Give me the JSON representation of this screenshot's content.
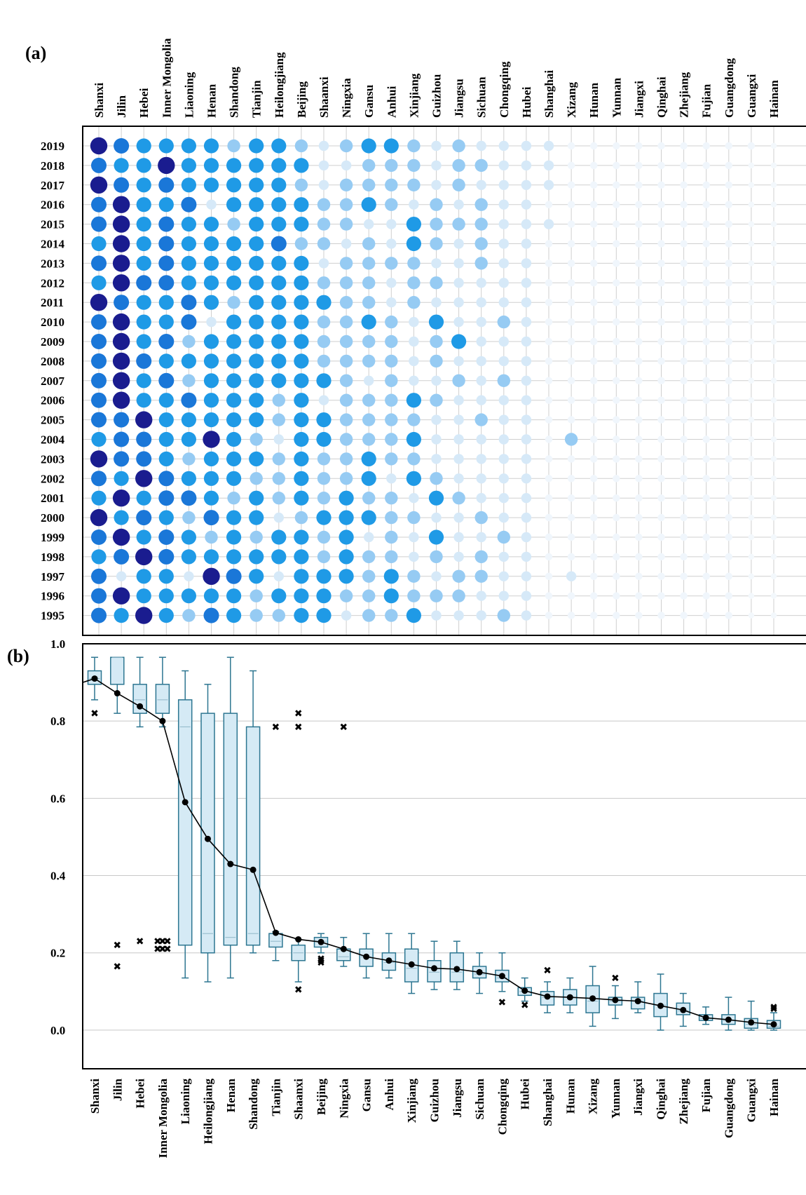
{
  "panel_labels": {
    "a": "(a)",
    "b": "(b)"
  },
  "colors": {
    "level_scale": [
      "#f0f6fc",
      "#d6e9f8",
      "#96cbf3",
      "#48b0f0",
      "#1f9ae6",
      "#1a77d8",
      "#3d52c6",
      "#1a1c8f"
    ],
    "box_fill": "#d5eaf5",
    "box_stroke": "#2d7691",
    "grid": "#c8c8c8",
    "median_line": "#000000"
  },
  "chart_data": [
    {
      "type": "heatmap",
      "panel": "(a)",
      "encoding": "circle size and color intensity, ordinal level 1 (lightest/smallest) to 8 (darkest/largest)",
      "provinces": [
        "Shanxi",
        "Jilin",
        "Hebei",
        "Inner Mongolia",
        "Liaoning",
        "Henan",
        "Shandong",
        "Tianjin",
        "Heilongjiang",
        "Beijing",
        "Shaanxi",
        "Ningxia",
        "Gansu",
        "Anhui",
        "Xinjiang",
        "Guizhou",
        "Jiangsu",
        "Sichuan",
        "Chongqing",
        "Hubei",
        "Shanghai",
        "Xizang",
        "Hunan",
        "Yunnan",
        "Jiangxi",
        "Qinghai",
        "Zhejiang",
        "Fujian",
        "Guangdong",
        "Guangxi",
        "Hainan"
      ],
      "years": [
        "2019",
        "2018",
        "2017",
        "2016",
        "2015",
        "2014",
        "2013",
        "2012",
        "2011",
        "2010",
        "2009",
        "2008",
        "2007",
        "2006",
        "2005",
        "2004",
        "2003",
        "2002",
        "2001",
        "2000",
        "1999",
        "1998",
        "1997",
        "1996",
        "1995"
      ],
      "levels": [
        [
          8,
          6,
          5,
          5,
          5,
          5,
          3,
          5,
          5,
          3,
          2,
          3,
          5,
          5,
          3,
          2,
          3,
          2,
          2,
          2,
          2,
          1,
          1,
          1,
          1,
          1,
          1,
          1,
          1,
          1,
          0
        ],
        [
          6,
          5,
          5,
          8,
          5,
          5,
          5,
          5,
          5,
          5,
          2,
          2,
          3,
          3,
          3,
          2,
          3,
          3,
          2,
          2,
          2,
          1,
          1,
          1,
          1,
          1,
          1,
          1,
          1,
          0,
          0
        ],
        [
          8,
          6,
          5,
          6,
          5,
          5,
          5,
          5,
          5,
          3,
          2,
          3,
          3,
          3,
          3,
          2,
          3,
          2,
          2,
          2,
          2,
          1,
          1,
          1,
          1,
          1,
          1,
          1,
          1,
          0,
          0
        ],
        [
          6,
          8,
          5,
          5,
          6,
          2,
          5,
          5,
          5,
          5,
          3,
          3,
          5,
          3,
          2,
          3,
          2,
          3,
          2,
          2,
          1,
          1,
          1,
          1,
          1,
          1,
          1,
          1,
          1,
          0,
          0
        ],
        [
          6,
          8,
          5,
          6,
          5,
          5,
          3,
          5,
          5,
          5,
          3,
          3,
          2,
          2,
          5,
          3,
          3,
          3,
          2,
          2,
          2,
          1,
          1,
          1,
          1,
          1,
          1,
          1,
          1,
          0,
          0
        ],
        [
          5,
          8,
          5,
          6,
          5,
          5,
          5,
          5,
          6,
          3,
          3,
          2,
          3,
          2,
          5,
          3,
          2,
          3,
          2,
          2,
          1,
          1,
          1,
          1,
          1,
          1,
          1,
          1,
          1,
          0,
          0
        ],
        [
          6,
          8,
          5,
          6,
          5,
          5,
          5,
          5,
          5,
          5,
          2,
          3,
          3,
          3,
          3,
          2,
          2,
          3,
          2,
          2,
          1,
          1,
          1,
          1,
          1,
          1,
          1,
          1,
          1,
          0,
          0
        ],
        [
          5,
          8,
          6,
          6,
          5,
          5,
          5,
          5,
          5,
          5,
          3,
          3,
          3,
          2,
          3,
          3,
          2,
          2,
          2,
          2,
          1,
          1,
          1,
          1,
          1,
          1,
          1,
          1,
          1,
          0,
          0
        ],
        [
          8,
          6,
          5,
          5,
          6,
          5,
          3,
          5,
          5,
          5,
          5,
          3,
          3,
          2,
          3,
          2,
          2,
          2,
          2,
          2,
          1,
          1,
          1,
          1,
          1,
          1,
          1,
          1,
          1,
          0,
          0
        ],
        [
          6,
          8,
          5,
          5,
          6,
          2,
          5,
          5,
          5,
          5,
          3,
          3,
          5,
          3,
          2,
          5,
          2,
          2,
          3,
          2,
          1,
          1,
          1,
          1,
          1,
          1,
          1,
          1,
          1,
          0,
          0
        ],
        [
          6,
          8,
          5,
          6,
          3,
          5,
          5,
          5,
          5,
          5,
          3,
          3,
          3,
          3,
          2,
          3,
          5,
          2,
          2,
          2,
          1,
          1,
          1,
          1,
          1,
          1,
          1,
          1,
          1,
          0,
          0
        ],
        [
          6,
          8,
          6,
          5,
          5,
          5,
          5,
          5,
          5,
          5,
          3,
          3,
          3,
          3,
          2,
          3,
          2,
          2,
          2,
          2,
          1,
          1,
          1,
          1,
          1,
          1,
          1,
          1,
          1,
          0,
          0
        ],
        [
          6,
          8,
          5,
          6,
          3,
          5,
          5,
          5,
          5,
          5,
          5,
          3,
          2,
          3,
          2,
          2,
          3,
          2,
          3,
          2,
          1,
          1,
          1,
          1,
          1,
          1,
          1,
          1,
          1,
          0,
          0
        ],
        [
          6,
          8,
          5,
          5,
          6,
          5,
          5,
          5,
          3,
          5,
          2,
          3,
          3,
          3,
          5,
          3,
          2,
          2,
          2,
          2,
          1,
          1,
          1,
          1,
          1,
          1,
          1,
          1,
          1,
          0,
          0
        ],
        [
          6,
          6,
          8,
          5,
          5,
          5,
          5,
          5,
          3,
          5,
          5,
          3,
          3,
          3,
          3,
          2,
          2,
          3,
          2,
          2,
          1,
          1,
          1,
          1,
          1,
          1,
          1,
          1,
          1,
          0,
          0
        ],
        [
          5,
          6,
          6,
          5,
          5,
          8,
          5,
          3,
          2,
          5,
          5,
          3,
          3,
          3,
          5,
          2,
          2,
          2,
          2,
          2,
          1,
          3,
          1,
          1,
          1,
          1,
          1,
          1,
          1,
          0,
          0
        ],
        [
          8,
          6,
          6,
          5,
          3,
          5,
          5,
          5,
          3,
          5,
          3,
          3,
          5,
          3,
          3,
          2,
          2,
          2,
          2,
          2,
          1,
          1,
          1,
          1,
          1,
          1,
          1,
          1,
          1,
          0,
          0
        ],
        [
          6,
          5,
          8,
          6,
          5,
          5,
          5,
          3,
          3,
          5,
          3,
          3,
          5,
          2,
          5,
          3,
          2,
          2,
          2,
          2,
          1,
          1,
          1,
          1,
          1,
          1,
          1,
          1,
          1,
          0,
          0
        ],
        [
          5,
          8,
          5,
          6,
          6,
          5,
          3,
          5,
          3,
          5,
          3,
          5,
          3,
          3,
          2,
          5,
          3,
          2,
          2,
          2,
          1,
          1,
          1,
          1,
          1,
          1,
          1,
          1,
          1,
          0,
          0
        ],
        [
          8,
          5,
          6,
          5,
          3,
          6,
          5,
          5,
          2,
          3,
          5,
          5,
          5,
          3,
          3,
          2,
          2,
          3,
          2,
          2,
          1,
          1,
          1,
          1,
          1,
          1,
          1,
          1,
          1,
          0,
          0
        ],
        [
          6,
          8,
          5,
          6,
          5,
          3,
          5,
          3,
          5,
          5,
          3,
          5,
          2,
          3,
          2,
          5,
          2,
          2,
          3,
          2,
          1,
          1,
          1,
          1,
          1,
          1,
          1,
          1,
          1,
          0,
          0
        ],
        [
          5,
          6,
          8,
          6,
          5,
          5,
          5,
          5,
          5,
          5,
          3,
          5,
          3,
          3,
          2,
          3,
          2,
          3,
          2,
          2,
          1,
          1,
          1,
          1,
          1,
          1,
          1,
          1,
          1,
          0,
          0
        ],
        [
          6,
          2,
          5,
          5,
          2,
          8,
          6,
          5,
          2,
          5,
          5,
          5,
          3,
          5,
          3,
          2,
          3,
          3,
          2,
          2,
          1,
          2,
          1,
          1,
          1,
          1,
          1,
          1,
          1,
          0,
          0
        ],
        [
          6,
          8,
          5,
          5,
          5,
          5,
          5,
          3,
          5,
          5,
          5,
          3,
          3,
          5,
          3,
          3,
          3,
          2,
          2,
          2,
          1,
          1,
          1,
          1,
          1,
          1,
          1,
          1,
          1,
          0,
          0
        ],
        [
          6,
          5,
          8,
          5,
          3,
          6,
          5,
          3,
          3,
          5,
          5,
          2,
          3,
          3,
          5,
          2,
          2,
          2,
          3,
          2,
          1,
          1,
          1,
          1,
          1,
          1,
          1,
          1,
          1,
          0,
          0
        ]
      ]
    },
    {
      "type": "box",
      "panel": "(b)",
      "categories": [
        "Shanxi",
        "Jilin",
        "Hebei",
        "Inner Mongolia",
        "Liaoning",
        "Heilongjiang",
        "Henan",
        "Shandong",
        "Tianjin",
        "Shaanxi",
        "Beijing",
        "Ningxia",
        "Gansu",
        "Anhui",
        "Xinjiang",
        "Guizhou",
        "Jiangsu",
        "Sichuan",
        "Chongqing",
        "Hubei",
        "Shanghai",
        "Hunan",
        "Xizang",
        "Yunnan",
        "Jiangxi",
        "Qinghai",
        "Zhejiang",
        "Fujian",
        "Guangdong",
        "Guangxi",
        "Hainan"
      ],
      "ylim": [
        -0.1,
        1.0
      ],
      "yticks": [
        "1.0",
        "0.8",
        "0.6",
        "0.4",
        "0.2",
        "0.0"
      ],
      "yticks_values": [
        1.0,
        0.8,
        0.6,
        0.4,
        0.2,
        0.0
      ],
      "grid": true,
      "boxes": [
        {
          "min": 0.855,
          "q1": 0.895,
          "median": 0.91,
          "q3": 0.93,
          "max": 0.965,
          "mean": 0.91,
          "outliers": [
            0.82
          ]
        },
        {
          "min": 0.82,
          "q1": 0.895,
          "median": 0.965,
          "q3": 0.965,
          "max": 0.965,
          "mean": 0.872,
          "outliers": [
            0.22,
            0.165
          ]
        },
        {
          "min": 0.785,
          "q1": 0.82,
          "median": 0.855,
          "q3": 0.895,
          "max": 0.965,
          "mean": 0.838,
          "outliers": [
            0.23
          ]
        },
        {
          "min": 0.785,
          "q1": 0.82,
          "median": 0.855,
          "q3": 0.895,
          "max": 0.965,
          "mean": 0.8,
          "outliers": [
            0.23,
            0.23,
            0.23,
            0.21,
            0.21,
            0.21
          ]
        },
        {
          "min": 0.135,
          "q1": 0.22,
          "median": 0.785,
          "q3": 0.855,
          "max": 0.93,
          "mean": 0.59,
          "outliers": []
        },
        {
          "min": 0.125,
          "q1": 0.2,
          "median": 0.25,
          "q3": 0.82,
          "max": 0.895,
          "mean": 0.495,
          "outliers": []
        },
        {
          "min": 0.135,
          "q1": 0.22,
          "median": 0.24,
          "q3": 0.82,
          "max": 0.965,
          "mean": 0.43,
          "outliers": []
        },
        {
          "min": 0.2,
          "q1": 0.22,
          "median": 0.25,
          "q3": 0.785,
          "max": 0.93,
          "mean": 0.415,
          "outliers": []
        },
        {
          "min": 0.18,
          "q1": 0.215,
          "median": 0.23,
          "q3": 0.25,
          "max": 0.255,
          "mean": 0.252,
          "outliers": [
            0.785
          ]
        },
        {
          "min": 0.125,
          "q1": 0.18,
          "median": 0.2,
          "q3": 0.22,
          "max": 0.235,
          "mean": 0.235,
          "outliers": [
            0.82,
            0.785,
            0.105
          ]
        },
        {
          "min": 0.2,
          "q1": 0.215,
          "median": 0.23,
          "q3": 0.24,
          "max": 0.25,
          "mean": 0.228,
          "outliers": [
            0.185,
            0.18,
            0.175
          ]
        },
        {
          "min": 0.165,
          "q1": 0.18,
          "median": 0.19,
          "q3": 0.21,
          "max": 0.24,
          "mean": 0.21,
          "outliers": [
            0.785
          ]
        },
        {
          "min": 0.135,
          "q1": 0.165,
          "median": 0.19,
          "q3": 0.21,
          "max": 0.25,
          "mean": 0.19,
          "outliers": []
        },
        {
          "min": 0.135,
          "q1": 0.155,
          "median": 0.175,
          "q3": 0.2,
          "max": 0.25,
          "mean": 0.18,
          "outliers": []
        },
        {
          "min": 0.095,
          "q1": 0.125,
          "median": 0.16,
          "q3": 0.21,
          "max": 0.25,
          "mean": 0.17,
          "outliers": []
        },
        {
          "min": 0.105,
          "q1": 0.125,
          "median": 0.15,
          "q3": 0.18,
          "max": 0.23,
          "mean": 0.16,
          "outliers": []
        },
        {
          "min": 0.105,
          "q1": 0.125,
          "median": 0.15,
          "q3": 0.2,
          "max": 0.23,
          "mean": 0.158,
          "outliers": []
        },
        {
          "min": 0.095,
          "q1": 0.135,
          "median": 0.145,
          "q3": 0.165,
          "max": 0.2,
          "mean": 0.15,
          "outliers": []
        },
        {
          "min": 0.1,
          "q1": 0.125,
          "median": 0.135,
          "q3": 0.155,
          "max": 0.2,
          "mean": 0.14,
          "outliers": [
            0.072
          ]
        },
        {
          "min": 0.075,
          "q1": 0.09,
          "median": 0.1,
          "q3": 0.11,
          "max": 0.135,
          "mean": 0.102,
          "outliers": [
            0.065
          ]
        },
        {
          "min": 0.045,
          "q1": 0.065,
          "median": 0.085,
          "q3": 0.1,
          "max": 0.125,
          "mean": 0.087,
          "outliers": [
            0.155
          ]
        },
        {
          "min": 0.045,
          "q1": 0.065,
          "median": 0.085,
          "q3": 0.105,
          "max": 0.135,
          "mean": 0.085,
          "outliers": []
        },
        {
          "min": 0.01,
          "q1": 0.045,
          "median": 0.075,
          "q3": 0.115,
          "max": 0.165,
          "mean": 0.082,
          "outliers": []
        },
        {
          "min": 0.03,
          "q1": 0.065,
          "median": 0.075,
          "q3": 0.085,
          "max": 0.115,
          "mean": 0.078,
          "outliers": [
            0.135
          ]
        },
        {
          "min": 0.045,
          "q1": 0.055,
          "median": 0.075,
          "q3": 0.085,
          "max": 0.125,
          "mean": 0.075,
          "outliers": []
        },
        {
          "min": 0.0,
          "q1": 0.035,
          "median": 0.065,
          "q3": 0.095,
          "max": 0.145,
          "mean": 0.063,
          "outliers": []
        },
        {
          "min": 0.01,
          "q1": 0.04,
          "median": 0.05,
          "q3": 0.07,
          "max": 0.095,
          "mean": 0.052,
          "outliers": []
        },
        {
          "min": 0.015,
          "q1": 0.025,
          "median": 0.03,
          "q3": 0.04,
          "max": 0.06,
          "mean": 0.032,
          "outliers": []
        },
        {
          "min": 0.0,
          "q1": 0.015,
          "median": 0.025,
          "q3": 0.04,
          "max": 0.085,
          "mean": 0.027,
          "outliers": []
        },
        {
          "min": 0.0,
          "q1": 0.005,
          "median": 0.015,
          "q3": 0.03,
          "max": 0.075,
          "mean": 0.02,
          "outliers": []
        },
        {
          "min": 0.0,
          "q1": 0.005,
          "median": 0.01,
          "q3": 0.025,
          "max": 0.045,
          "mean": 0.015,
          "outliers": [
            0.06,
            0.055
          ]
        }
      ],
      "mean_line": true
    }
  ]
}
